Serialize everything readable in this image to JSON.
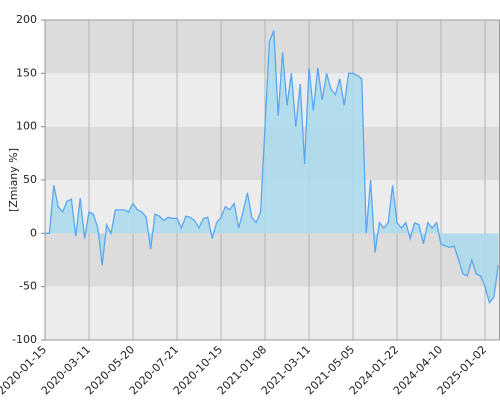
{
  "chart_data": {
    "type": "area",
    "y_label": "[Zmiany %]",
    "categories": [
      "2020-01-15",
      null,
      null,
      null,
      null,
      null,
      null,
      null,
      null,
      null,
      "2020-03-11",
      null,
      null,
      null,
      null,
      null,
      null,
      null,
      null,
      null,
      "2020-05-20",
      null,
      null,
      null,
      null,
      null,
      null,
      null,
      null,
      null,
      "2020-07-21",
      null,
      null,
      null,
      null,
      null,
      null,
      null,
      null,
      null,
      "2020-10-15",
      null,
      null,
      null,
      null,
      null,
      null,
      null,
      null,
      null,
      "2021-01-08",
      null,
      null,
      null,
      null,
      null,
      null,
      null,
      null,
      null,
      "2021-03-11",
      null,
      null,
      null,
      null,
      null,
      null,
      null,
      null,
      null,
      "2021-05-05",
      null,
      null,
      null,
      null,
      null,
      null,
      null,
      null,
      null,
      "2024-01-22",
      null,
      null,
      null,
      null,
      null,
      null,
      null,
      null,
      null,
      "2024-04-10",
      null,
      null,
      null,
      null,
      null,
      null,
      null,
      null,
      null,
      "2025-01-02",
      null,
      null,
      null
    ],
    "series": [
      {
        "color": "#5aa8f2",
        "fill": "#a9d9ec",
        "values": [
          0,
          0,
          45,
          25,
          20,
          30,
          32,
          -3,
          33,
          -5,
          20,
          18,
          5,
          -30,
          8,
          0,
          22,
          22,
          22,
          20,
          28,
          22,
          20,
          15,
          -15,
          18,
          16,
          12,
          15,
          14,
          14,
          5,
          16,
          15,
          12,
          5,
          14,
          15,
          -5,
          10,
          15,
          25,
          22,
          28,
          5,
          20,
          38,
          15,
          10,
          20,
          100,
          180,
          190,
          110,
          170,
          120,
          150,
          100,
          140,
          65,
          155,
          115,
          155,
          125,
          150,
          135,
          130,
          145,
          120,
          150,
          150,
          148,
          145,
          0,
          50,
          -18,
          10,
          5,
          10,
          45,
          10,
          5,
          10,
          -5,
          10,
          8,
          -10,
          10,
          5,
          10,
          -10,
          -12,
          -13,
          -12,
          -25,
          -38,
          -40,
          -25,
          -38,
          -40,
          -50,
          -65,
          -60,
          -30
        ]
      }
    ],
    "ylim": [
      -100,
      200
    ],
    "yticks": [
      -100,
      -50,
      0,
      50,
      100,
      150,
      200
    ]
  }
}
